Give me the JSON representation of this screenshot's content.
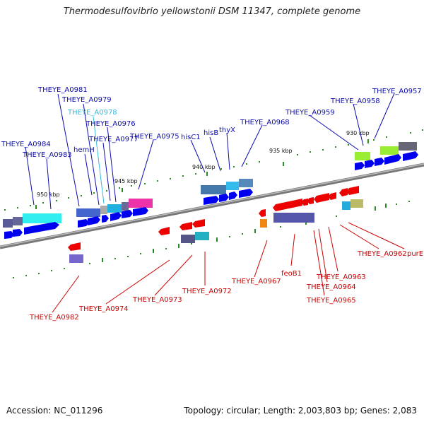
{
  "title": "Thermodesulfovibrio yellowstonii DSM 11347, complete genome",
  "footer": {
    "accession": "Accession: NC_011296",
    "summary": "Topology: circular; Length: 2,003,803 bp; Genes: 2,083"
  },
  "kbp_labels": [
    "950 kbp",
    "945 kbp",
    "940 kbp",
    "935 kbp",
    "930 kbp"
  ],
  "forward_labels": [
    {
      "text": "THEYE_A0981",
      "color": "#0b0bb0"
    },
    {
      "text": "THEYE_A0979",
      "color": "#0b0bb0"
    },
    {
      "text": "THEYE_A0978",
      "color": "#33bbdd"
    },
    {
      "text": "THEYE_A0976",
      "color": "#0b0bb0"
    },
    {
      "text": "THEYE_A0977",
      "color": "#0b0bb0"
    },
    {
      "text": "hemH",
      "color": "#0b0bb0"
    },
    {
      "text": "THEYE_A0975",
      "color": "#0b0bb0"
    },
    {
      "text": "THEYE_A0984",
      "color": "#0b0bb0"
    },
    {
      "text": "THEYE_A0983",
      "color": "#0b0bb0"
    },
    {
      "text": "hisC1",
      "color": "#0b0bb0"
    },
    {
      "text": "hisB",
      "color": "#0b0bb0"
    },
    {
      "text": "thyX",
      "color": "#0b0bb0"
    },
    {
      "text": "THEYE_A0968",
      "color": "#0b0bb0"
    },
    {
      "text": "THEYE_A0959",
      "color": "#0b0bb0"
    },
    {
      "text": "THEYE_A0958",
      "color": "#0b0bb0"
    },
    {
      "text": "THEYE_A0957",
      "color": "#0b0bb0"
    }
  ],
  "reverse_labels": [
    {
      "text": "THEYE_A0962",
      "color": "#cc0000"
    },
    {
      "text": "purE",
      "color": "#cc0000"
    },
    {
      "text": "THEYE_A0967",
      "color": "#cc0000"
    },
    {
      "text": "feoB1",
      "color": "#cc0000"
    },
    {
      "text": "THEYE_A0963",
      "color": "#cc0000"
    },
    {
      "text": "THEYE_A0964",
      "color": "#cc0000"
    },
    {
      "text": "THEYE_A0965",
      "color": "#cc0000"
    },
    {
      "text": "THEYE_A0972",
      "color": "#cc0000"
    },
    {
      "text": "THEYE_A0973",
      "color": "#cc0000"
    },
    {
      "text": "THEYE_A0974",
      "color": "#cc0000"
    },
    {
      "text": "THEYE_A0982",
      "color": "#cc0000"
    }
  ]
}
